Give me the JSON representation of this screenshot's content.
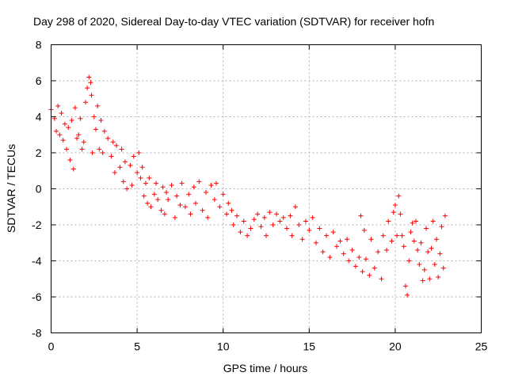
{
  "chart_data": {
    "type": "scatter",
    "title": "Day 298 of 2020, Sidereal Day-to-day VTEC variation (SDTVAR) for receiver hofn",
    "xlabel": "GPS time / hours",
    "ylabel": "SDTVAR / TECUs",
    "xlim": [
      0,
      25
    ],
    "ylim": [
      -8,
      8
    ],
    "xticks": [
      "0",
      "5",
      "10",
      "15",
      "20",
      "25"
    ],
    "yticks": [
      "8",
      "6",
      "4",
      "2",
      "0",
      "-2",
      "-4",
      "-6",
      "-8"
    ],
    "grid": true,
    "marker": "+",
    "color": "#ff0000",
    "series": [
      {
        "name": "SDTVAR",
        "points": [
          [
            0.0,
            4.4
          ],
          [
            0.2,
            3.9
          ],
          [
            0.3,
            3.2
          ],
          [
            0.4,
            4.6
          ],
          [
            0.5,
            3.0
          ],
          [
            0.6,
            4.2
          ],
          [
            0.7,
            2.7
          ],
          [
            0.8,
            3.6
          ],
          [
            0.9,
            2.2
          ],
          [
            1.0,
            3.4
          ],
          [
            1.1,
            1.6
          ],
          [
            1.2,
            3.8
          ],
          [
            1.3,
            1.1
          ],
          [
            1.4,
            4.5
          ],
          [
            1.5,
            2.8
          ],
          [
            1.6,
            3.0
          ],
          [
            1.7,
            3.9
          ],
          [
            1.8,
            2.2
          ],
          [
            1.9,
            2.6
          ],
          [
            2.0,
            4.8
          ],
          [
            2.1,
            5.6
          ],
          [
            2.2,
            6.2
          ],
          [
            2.3,
            5.9
          ],
          [
            2.35,
            5.2
          ],
          [
            2.4,
            2.0
          ],
          [
            2.5,
            4.0
          ],
          [
            2.6,
            3.3
          ],
          [
            2.7,
            4.6
          ],
          [
            2.8,
            2.2
          ],
          [
            2.9,
            3.8
          ],
          [
            3.0,
            2.0
          ],
          [
            3.1,
            3.2
          ],
          [
            3.3,
            2.8
          ],
          [
            3.5,
            1.8
          ],
          [
            3.6,
            2.6
          ],
          [
            3.7,
            0.9
          ],
          [
            3.8,
            2.4
          ],
          [
            4.0,
            1.2
          ],
          [
            4.1,
            2.2
          ],
          [
            4.2,
            0.4
          ],
          [
            4.3,
            1.5
          ],
          [
            4.4,
            0.0
          ],
          [
            4.6,
            1.3
          ],
          [
            4.7,
            0.2
          ],
          [
            4.8,
            1.8
          ],
          [
            5.0,
            0.9
          ],
          [
            5.1,
            2.0
          ],
          [
            5.2,
            0.6
          ],
          [
            5.3,
            1.2
          ],
          [
            5.4,
            -0.4
          ],
          [
            5.5,
            0.3
          ],
          [
            5.6,
            -0.8
          ],
          [
            5.7,
            0.6
          ],
          [
            5.8,
            -1.0
          ],
          [
            6.0,
            -0.3
          ],
          [
            6.1,
            0.3
          ],
          [
            6.2,
            -0.6
          ],
          [
            6.4,
            -1.2
          ],
          [
            6.5,
            0.1
          ],
          [
            6.6,
            -1.4
          ],
          [
            6.7,
            -0.2
          ],
          [
            6.8,
            -0.6
          ],
          [
            7.0,
            0.2
          ],
          [
            7.2,
            -1.6
          ],
          [
            7.3,
            -0.4
          ],
          [
            7.5,
            -0.9
          ],
          [
            7.6,
            0.3
          ],
          [
            7.8,
            -1.0
          ],
          [
            8.0,
            -0.3
          ],
          [
            8.1,
            -1.4
          ],
          [
            8.3,
            0.1
          ],
          [
            8.4,
            -0.8
          ],
          [
            8.6,
            0.4
          ],
          [
            8.8,
            -1.2
          ],
          [
            9.0,
            -0.2
          ],
          [
            9.1,
            -1.6
          ],
          [
            9.3,
            0.2
          ],
          [
            9.5,
            -0.6
          ],
          [
            9.6,
            0.3
          ],
          [
            9.8,
            -1.0
          ],
          [
            10.0,
            -0.3
          ],
          [
            10.2,
            -1.4
          ],
          [
            10.3,
            -0.8
          ],
          [
            10.5,
            -1.2
          ],
          [
            10.6,
            -2.0
          ],
          [
            10.8,
            -1.5
          ],
          [
            11.0,
            -2.4
          ],
          [
            11.2,
            -1.8
          ],
          [
            11.4,
            -2.6
          ],
          [
            11.6,
            -2.2
          ],
          [
            11.8,
            -1.7
          ],
          [
            12.0,
            -1.4
          ],
          [
            12.2,
            -2.1
          ],
          [
            12.4,
            -1.6
          ],
          [
            12.5,
            -2.6
          ],
          [
            12.7,
            -1.3
          ],
          [
            12.9,
            -2.0
          ],
          [
            13.1,
            -1.4
          ],
          [
            13.3,
            -1.8
          ],
          [
            13.5,
            -1.6
          ],
          [
            13.7,
            -2.2
          ],
          [
            13.9,
            -1.5
          ],
          [
            14.0,
            -2.6
          ],
          [
            14.2,
            -1.0
          ],
          [
            14.4,
            -2.0
          ],
          [
            14.6,
            -2.8
          ],
          [
            14.8,
            -1.8
          ],
          [
            15.0,
            -2.3
          ],
          [
            15.2,
            -1.6
          ],
          [
            15.4,
            -3.0
          ],
          [
            15.6,
            -2.2
          ],
          [
            15.8,
            -3.5
          ],
          [
            16.0,
            -2.6
          ],
          [
            16.2,
            -3.8
          ],
          [
            16.4,
            -2.4
          ],
          [
            16.6,
            -3.2
          ],
          [
            16.8,
            -2.9
          ],
          [
            17.0,
            -3.6
          ],
          [
            17.2,
            -2.8
          ],
          [
            17.3,
            -4.0
          ],
          [
            17.5,
            -3.4
          ],
          [
            17.7,
            -4.3
          ],
          [
            17.9,
            -3.8
          ],
          [
            18.0,
            -1.5
          ],
          [
            18.1,
            -4.6
          ],
          [
            18.2,
            -2.3
          ],
          [
            18.3,
            -3.9
          ],
          [
            18.5,
            -4.8
          ],
          [
            18.6,
            -2.8
          ],
          [
            18.8,
            -4.4
          ],
          [
            19.0,
            -3.5
          ],
          [
            19.2,
            -5.0
          ],
          [
            19.3,
            -2.6
          ],
          [
            19.5,
            -3.4
          ],
          [
            19.6,
            -1.8
          ],
          [
            19.8,
            -2.9
          ],
          [
            19.9,
            -1.3
          ],
          [
            20.0,
            -0.9
          ],
          [
            20.1,
            -2.6
          ],
          [
            20.2,
            -0.4
          ],
          [
            20.3,
            -1.4
          ],
          [
            20.4,
            -2.6
          ],
          [
            20.5,
            -3.2
          ],
          [
            20.6,
            -5.4
          ],
          [
            20.7,
            -5.9
          ],
          [
            20.8,
            -4.0
          ],
          [
            20.9,
            -2.4
          ],
          [
            21.0,
            -1.9
          ],
          [
            21.1,
            -2.9
          ],
          [
            21.2,
            -1.8
          ],
          [
            21.3,
            -3.4
          ],
          [
            21.4,
            -4.2
          ],
          [
            21.5,
            -3.0
          ],
          [
            21.6,
            -5.1
          ],
          [
            21.7,
            -4.5
          ],
          [
            21.8,
            -2.2
          ],
          [
            21.9,
            -3.5
          ],
          [
            22.0,
            -5.0
          ],
          [
            22.1,
            -3.3
          ],
          [
            22.2,
            -1.8
          ],
          [
            22.3,
            -4.2
          ],
          [
            22.4,
            -2.8
          ],
          [
            22.5,
            -4.9
          ],
          [
            22.6,
            -3.6
          ],
          [
            22.7,
            -2.1
          ],
          [
            22.8,
            -4.4
          ],
          [
            22.9,
            -1.5
          ]
        ]
      }
    ]
  }
}
